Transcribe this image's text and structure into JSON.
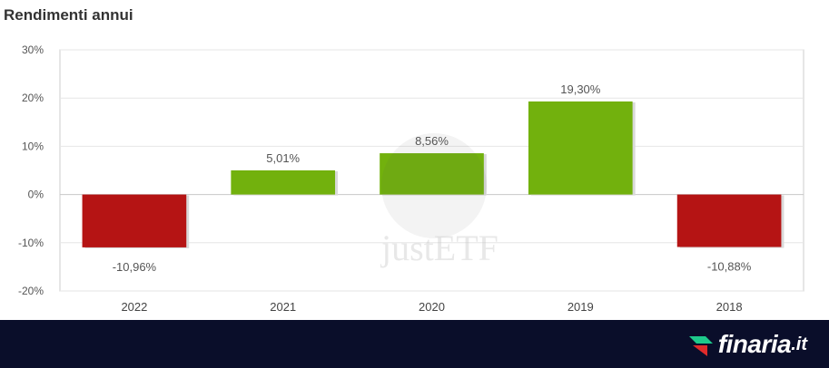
{
  "chart_data": {
    "type": "bar",
    "title": "Rendimenti annui",
    "categories": [
      "2022",
      "2021",
      "2020",
      "2019",
      "2018"
    ],
    "values": [
      -10.96,
      5.01,
      8.56,
      19.3,
      -10.88
    ],
    "data_labels": [
      "-10,96%",
      "5,01%",
      "8,56%",
      "19,30%",
      "-10,88%"
    ],
    "ylim": [
      -20,
      30
    ],
    "yticks": [
      -20,
      -10,
      0,
      10,
      20,
      30
    ],
    "ytick_labels": [
      "-20%",
      "-10%",
      "0%",
      "10%",
      "20%",
      "30%"
    ],
    "grid": true,
    "positive_color": "#72b10d",
    "negative_color": "#b51414"
  },
  "watermark": "justETF",
  "brand": {
    "name": "finaria",
    "tld": ".it",
    "accent_color": "#1ec98b"
  }
}
